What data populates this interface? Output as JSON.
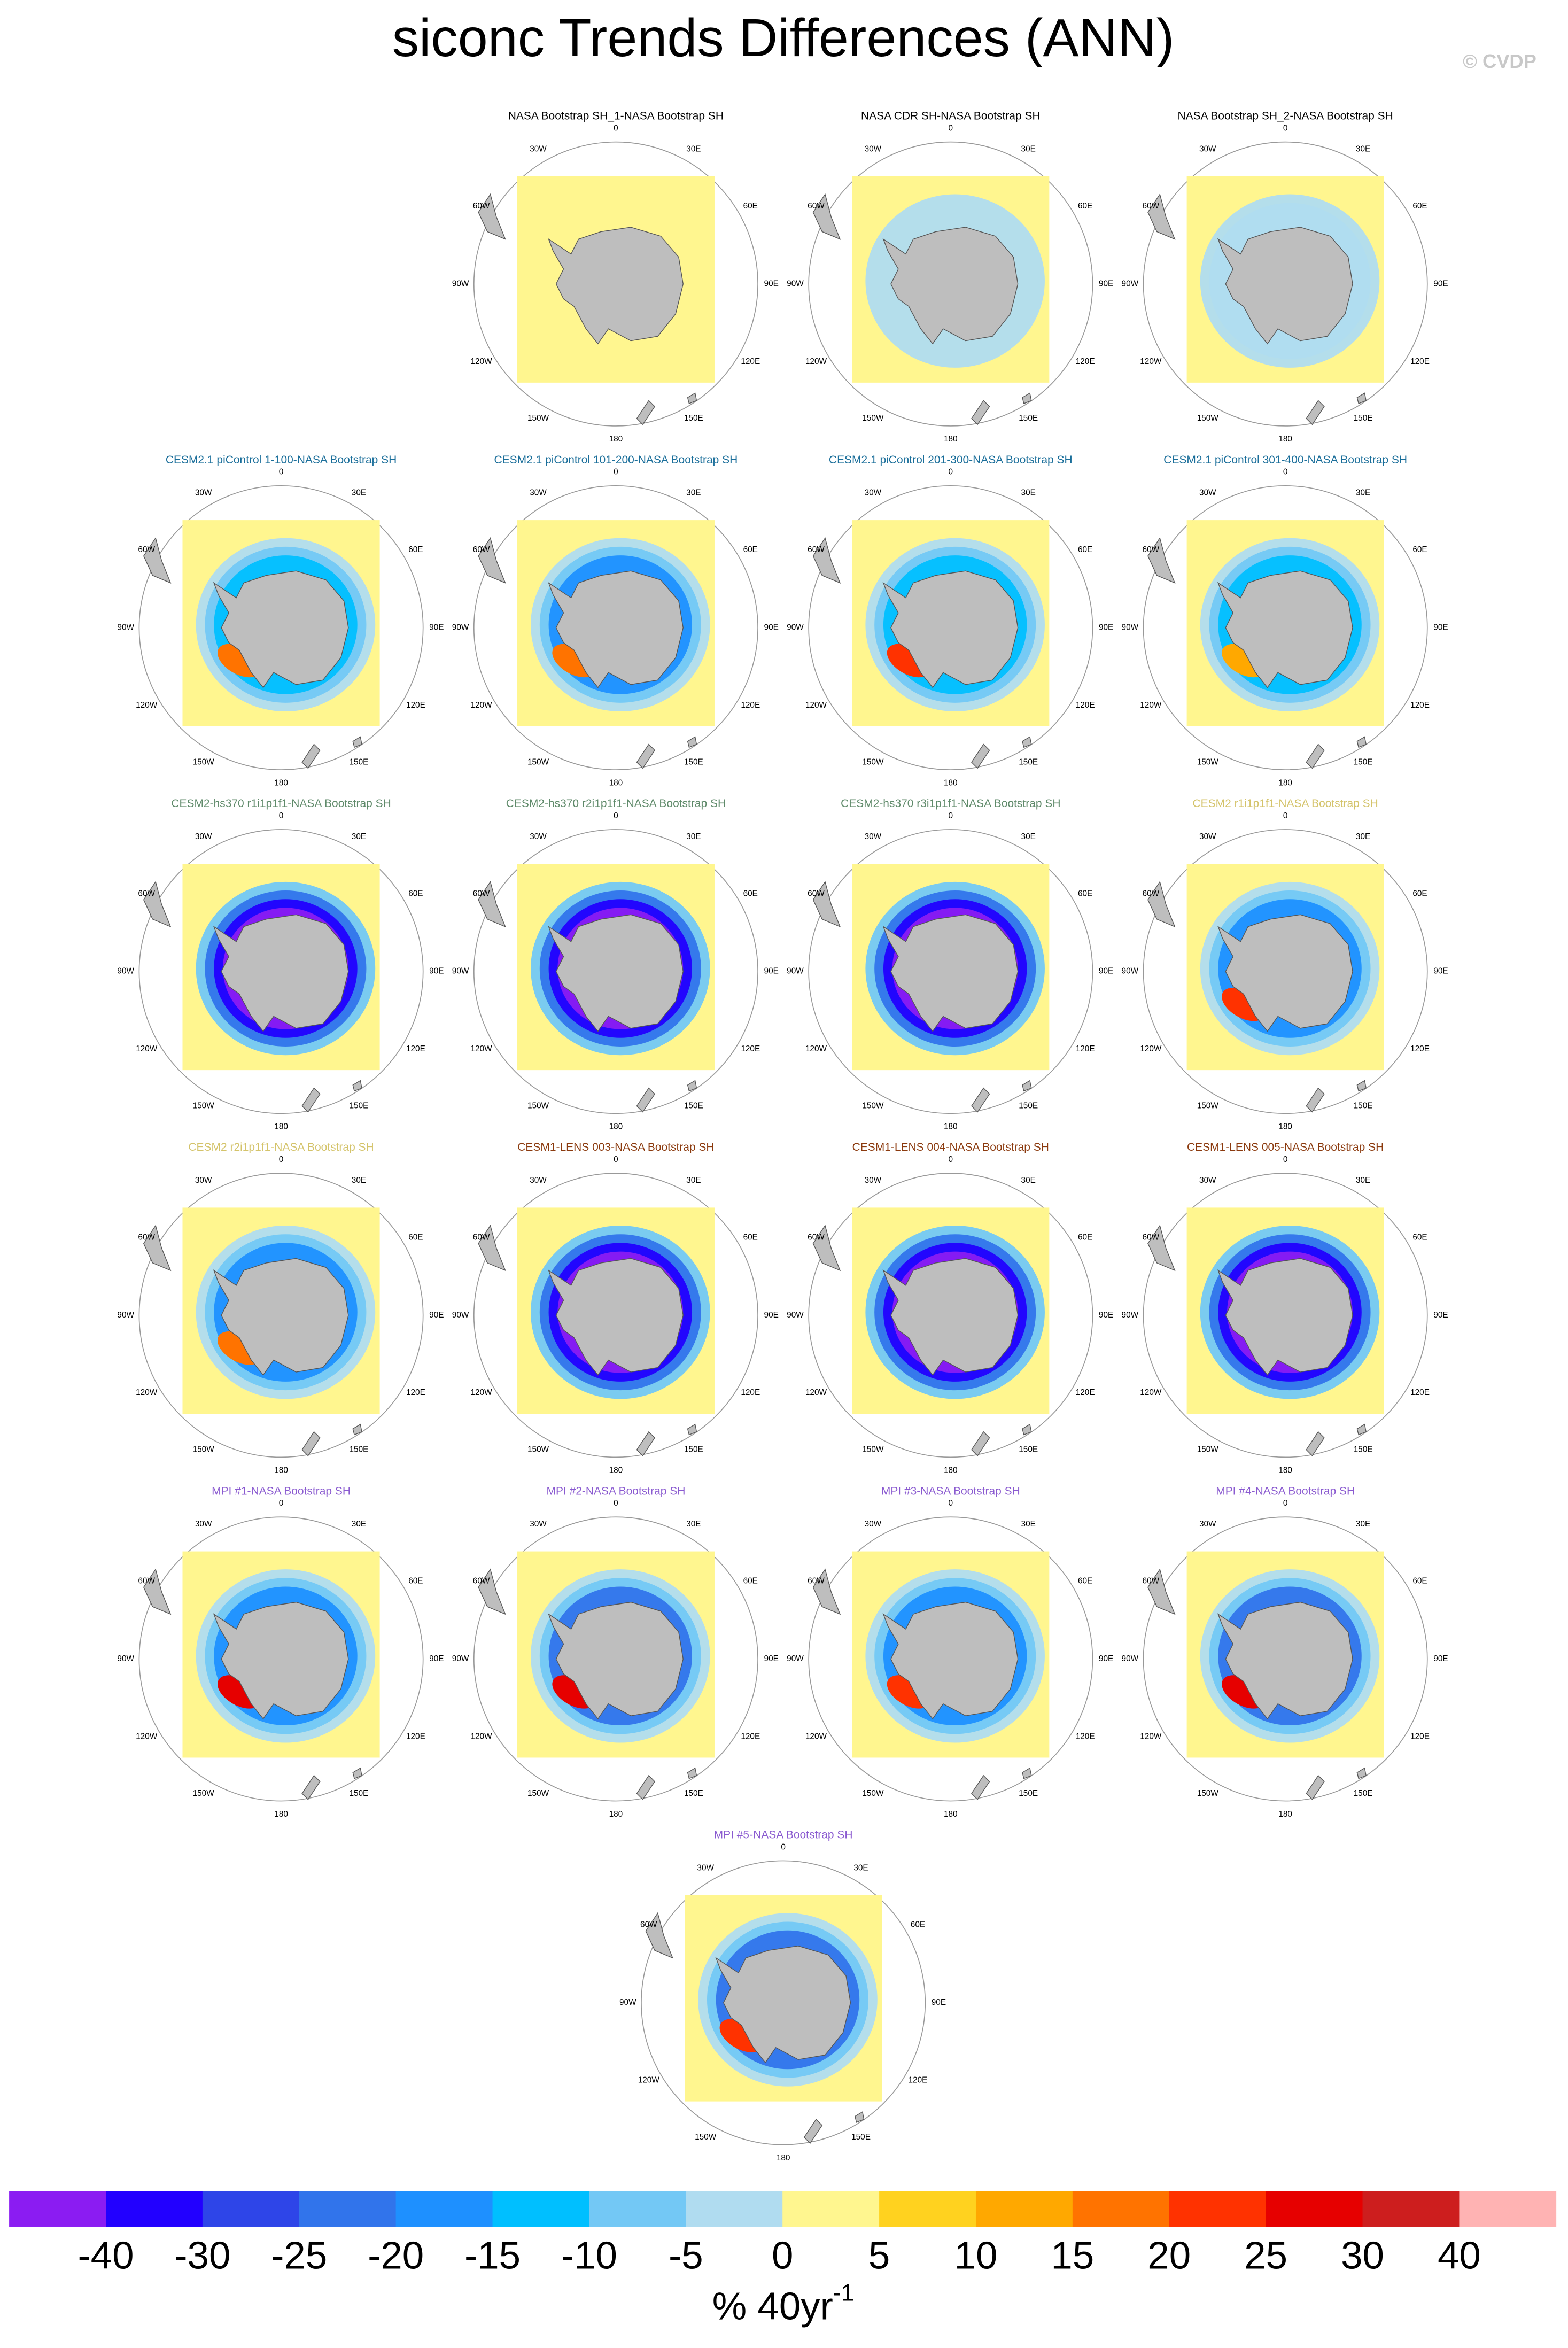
{
  "chart_data": {
    "type": "polar_map_panels",
    "title": "siconc Trends Differences (ANN)",
    "copyright": "© CVDP",
    "longitude_labels": [
      "0",
      "30E",
      "60E",
      "90E",
      "120E",
      "150E",
      "180",
      "150W",
      "120W",
      "90W",
      "60W",
      "30W"
    ],
    "panels": [
      {
        "title": "NASA Bootstrap SH_1-NASA Bootstrap SH",
        "title_color": "#000000"
      },
      {
        "title": "NASA CDR SH-NASA Bootstrap SH",
        "title_color": "#000000"
      },
      {
        "title": "NASA Bootstrap SH_2-NASA Bootstrap SH",
        "title_color": "#000000"
      },
      {
        "title": "CESM2.1 piControl 1-100-NASA Bootstrap SH",
        "title_color": "#1a6e9a"
      },
      {
        "title": "CESM2.1 piControl 101-200-NASA Bootstrap SH",
        "title_color": "#1a6e9a"
      },
      {
        "title": "CESM2.1 piControl 201-300-NASA Bootstrap SH",
        "title_color": "#1a6e9a"
      },
      {
        "title": "CESM2.1 piControl 301-400-NASA Bootstrap SH",
        "title_color": "#1a6e9a"
      },
      {
        "title": "CESM2-hs370 r1i1p1f1-NASA Bootstrap SH",
        "title_color": "#5f8a6a"
      },
      {
        "title": "CESM2-hs370 r2i1p1f1-NASA Bootstrap SH",
        "title_color": "#5f8a6a"
      },
      {
        "title": "CESM2-hs370 r3i1p1f1-NASA Bootstrap SH",
        "title_color": "#5f8a6a"
      },
      {
        "title": "CESM2 r1i1p1f1-NASA Bootstrap SH",
        "title_color": "#d4c36a"
      },
      {
        "title": "CESM2 r2i1p1f1-NASA Bootstrap SH",
        "title_color": "#d4c36a"
      },
      {
        "title": "CESM1-LENS 003-NASA Bootstrap SH",
        "title_color": "#8b3a0e"
      },
      {
        "title": "CESM1-LENS 004-NASA Bootstrap SH",
        "title_color": "#8b3a0e"
      },
      {
        "title": "CESM1-LENS 005-NASA Bootstrap SH",
        "title_color": "#8b3a0e"
      },
      {
        "title": "MPI #1-NASA Bootstrap SH",
        "title_color": "#8a5ad0"
      },
      {
        "title": "MPI #2-NASA Bootstrap SH",
        "title_color": "#8a5ad0"
      },
      {
        "title": "MPI #3-NASA Bootstrap SH",
        "title_color": "#8a5ad0"
      },
      {
        "title": "MPI #4-NASA Bootstrap SH",
        "title_color": "#8a5ad0"
      },
      {
        "title": "MPI #5-NASA Bootstrap SH",
        "title_color": "#8a5ad0"
      }
    ],
    "colorbar": {
      "colors": [
        "#8b1cf2",
        "#2200ff",
        "#2e45e8",
        "#3174eb",
        "#1e90ff",
        "#00bfff",
        "#73c8f5",
        "#b0dcf0",
        "#fff68f",
        "#ffd21f",
        "#ffa800",
        "#ff7300",
        "#ff3200",
        "#e60000",
        "#cd1e1e",
        "#ffb3b3"
      ],
      "ticks": [
        -40,
        -30,
        -25,
        -20,
        -15,
        -10,
        -5,
        0,
        5,
        10,
        15,
        20,
        25,
        30,
        40
      ],
      "label": "% 40yr",
      "label_superscript": "-1"
    }
  }
}
